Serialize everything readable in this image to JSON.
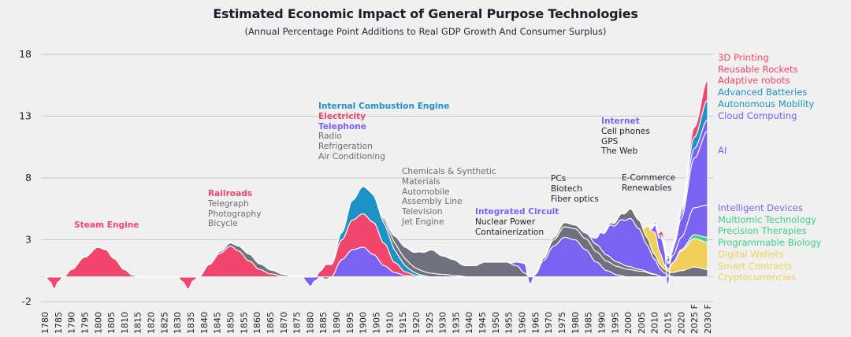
{
  "chart_data": {
    "type": "area",
    "title": "Estimated Economic Impact of General Purpose Technologies",
    "subtitle": "(Annual Percentage Point Additions to Real GDP Growth And Consumer Surplus)",
    "xlabel": "",
    "ylabel": "",
    "ylim": [
      -2,
      18
    ],
    "yticks": [
      18,
      13,
      8,
      3,
      -2
    ],
    "xlim": [
      1780,
      2030
    ],
    "xticks": [
      1780,
      1785,
      1790,
      1795,
      1800,
      1805,
      1810,
      1815,
      1820,
      1825,
      1830,
      1835,
      1840,
      1845,
      1850,
      1855,
      1860,
      1865,
      1870,
      1875,
      1880,
      1885,
      1890,
      1895,
      1900,
      1905,
      1910,
      1915,
      1920,
      1925,
      1930,
      1935,
      1940,
      1945,
      1950,
      1955,
      1960,
      1965,
      1970,
      1975,
      1980,
      1985,
      1990,
      1995,
      2000,
      2005,
      2010,
      2015,
      2020,
      2025,
      2030
    ],
    "xtick_labels": [
      "1780",
      "1785",
      "1790",
      "1795",
      "1800",
      "1805",
      "1810",
      "1815",
      "1820",
      "1825",
      "1830",
      "1835",
      "1840",
      "1845",
      "1850",
      "1855",
      "1860",
      "1865",
      "1870",
      "1875",
      "1880",
      "1885",
      "1890",
      "1895",
      "1900",
      "1905",
      "1910",
      "1915",
      "1920",
      "1925",
      "1930",
      "1935",
      "1940",
      "1945",
      "1950",
      "1955",
      "1960",
      "1965",
      "1970",
      "1975",
      "1980",
      "1985",
      "1990",
      "1995",
      "2000",
      "2005",
      "2010",
      "2015",
      "2020",
      "2025 F",
      "2030 F"
    ],
    "grid": true,
    "colors": {
      "pink": "#f2456c",
      "teal": "#1d92c6",
      "purple": "#7b63f2",
      "gray": "#6f717f",
      "yellow": "#f1cf5a",
      "green": "#3ccf8e",
      "background": "#f0f0f0",
      "grid": "#c8c8c8"
    },
    "series": [
      {
        "name": "Steam Engine",
        "color": "pink",
        "x": [
          1780,
          1782,
          1783.5,
          1785,
          1787,
          1790,
          1795,
          1800,
          1803,
          1806,
          1810,
          1813,
          1816,
          1820
        ],
        "y": [
          0,
          -0.4,
          -1.0,
          -0.4,
          0,
          0.6,
          1.6,
          2.4,
          2.2,
          1.5,
          0.6,
          0.15,
          0,
          0
        ]
      },
      {
        "name": "Railroads",
        "color": "pink",
        "x": [
          1830,
          1832,
          1834,
          1836,
          1838,
          1842,
          1846,
          1850,
          1853,
          1857,
          1861,
          1865,
          1870,
          1872
        ],
        "y": [
          0,
          -0.4,
          -1.0,
          -0.3,
          0,
          1.0,
          1.9,
          2.5,
          2.1,
          1.3,
          0.6,
          0.25,
          0.05,
          0
        ]
      },
      {
        "name": "Telegraph / Photography / Bicycle",
        "color": "gray",
        "x": [
          1840,
          1846,
          1850,
          1853,
          1857,
          1862,
          1866,
          1870,
          1874,
          1878,
          1880
        ],
        "y": [
          0,
          0.15,
          0.25,
          0.4,
          0.55,
          0.45,
          0.3,
          0.15,
          0.06,
          0,
          0
        ]
      },
      {
        "name": "Telephone",
        "color": "purple",
        "x": [
          1877,
          1879,
          1880,
          1882,
          1884,
          1886,
          1888,
          1892,
          1896,
          1900,
          1904,
          1908,
          1912,
          1916,
          1920
        ],
        "y": [
          0,
          -0.5,
          -0.8,
          -0.3,
          0,
          -0.2,
          0,
          1.4,
          2.2,
          2.4,
          1.8,
          0.9,
          0.35,
          0.1,
          0
        ]
      },
      {
        "name": "Electricity",
        "color": "pink",
        "x": [
          1882,
          1884,
          1886,
          1888,
          1892,
          1896,
          1900,
          1904,
          1908,
          1912,
          1916,
          1920,
          1924
        ],
        "y": [
          0,
          0.5,
          1.0,
          1.0,
          1.6,
          2.4,
          2.7,
          2.6,
          1.8,
          0.8,
          0.3,
          0.1,
          0
        ]
      },
      {
        "name": "Internal Combustion Engine",
        "color": "teal",
        "x": [
          1886,
          1888,
          1892,
          1896,
          1900,
          1903,
          1906,
          1910,
          1914,
          1918,
          1922,
          1926
        ],
        "y": [
          0,
          0.1,
          0.6,
          1.6,
          2.2,
          2.3,
          1.9,
          1.3,
          0.7,
          0.3,
          0.1,
          0
        ]
      },
      {
        "name": "Radio / Refrigeration / Air Conditioning",
        "color": "gray",
        "x": [
          1895,
          1900,
          1905,
          1908,
          1912,
          1916,
          1920,
          1925,
          1930,
          1935,
          1940
        ],
        "y": [
          0,
          0.05,
          0.1,
          0.3,
          0.6,
          0.55,
          0.4,
          0.3,
          0.2,
          0.1,
          0
        ]
      },
      {
        "name": "Chemicals & Synthetic Materials / Automobile / Assembly Line / Television / Jet Engine",
        "color": "gray",
        "x": [
          1905,
          1910,
          1914,
          1918,
          1922,
          1926,
          1930,
          1934,
          1938,
          1942,
          1946,
          1950,
          1954,
          1958,
          1961,
          1963
        ],
        "y": [
          0,
          0.3,
          0.8,
          1.1,
          1.5,
          1.9,
          1.5,
          1.3,
          0.9,
          0.9,
          1.2,
          1.2,
          1.2,
          0.9,
          0.3,
          0
        ]
      },
      {
        "name": "Integrated Circuit",
        "color": "purple",
        "x": [
          1955,
          1958,
          1961,
          1963,
          1965,
          1968,
          1972,
          1976,
          1980,
          1984,
          1988,
          1992,
          1996,
          2000
        ],
        "y": [
          0,
          0.3,
          0.8,
          -0.6,
          0.2,
          1.3,
          2.5,
          3.2,
          3.0,
          2.2,
          1.2,
          0.5,
          0.15,
          0
        ]
      },
      {
        "name": "Nuclear Power / Containerization",
        "color": "gray",
        "x": [
          1960,
          1965,
          1968,
          1972,
          1976,
          1980,
          1985,
          1990,
          1995,
          2000,
          2005,
          2010,
          2013
        ],
        "y": [
          0,
          0.05,
          0.2,
          0.5,
          0.85,
          0.9,
          0.9,
          0.8,
          0.7,
          0.6,
          0.45,
          0.2,
          0
        ]
      },
      {
        "name": "PCs / Biotech / Fiber optics",
        "color": "gray",
        "x": [
          1968,
          1972,
          1976,
          1980,
          1984,
          1988,
          1992,
          1996,
          2000,
          2004,
          2008,
          2012
        ],
        "y": [
          0,
          0.2,
          0.35,
          0.3,
          0.45,
          0.6,
          0.5,
          0.35,
          0.25,
          0.15,
          0.05,
          0
        ]
      },
      {
        "name": "Internet / Cell phones / GPS / The Web",
        "color": "purple",
        "x": [
          1985,
          1988,
          1990,
          1994,
          1998,
          2001,
          2004,
          2007,
          2010,
          2012,
          2014,
          2016,
          2018
        ],
        "y": [
          0,
          0.5,
          1.4,
          2.7,
          3.6,
          3.9,
          3.3,
          2.2,
          1.2,
          0.6,
          0.3,
          0.05,
          0
        ]
      },
      {
        "name": "E-Commerce / Renewables",
        "color": "gray",
        "x": [
          1990,
          1994,
          1998,
          2001,
          2004,
          2007,
          2010,
          2013,
          2016,
          2020,
          2025,
          2030
        ],
        "y": [
          0,
          0.2,
          0.5,
          0.8,
          0.7,
          0.6,
          0.4,
          0.3,
          0.3,
          0.5,
          0.8,
          0.6
        ]
      },
      {
        "name": "Cryptocurrencies / Smart Contracts / Digital Wallets",
        "color": "yellow",
        "x": [
          2005,
          2008,
          2010,
          2012,
          2014,
          2015,
          2017,
          2020,
          2025,
          2030
        ],
        "y": [
          0,
          1.2,
          1.8,
          1.0,
          0.3,
          0.2,
          0.8,
          1.6,
          2.3,
          2.2
        ]
      },
      {
        "name": "Programmable Biology / Precision Therapies / Multiomic Technology",
        "color": "green",
        "x": [
          2015,
          2018,
          2020,
          2025,
          2030
        ],
        "y": [
          0,
          0.02,
          0.1,
          0.3,
          0.4
        ]
      },
      {
        "name": "Intelligent Devices",
        "color": "purple",
        "x": [
          2008,
          2011,
          2013,
          2015,
          2017,
          2020,
          2025,
          2030
        ],
        "y": [
          0,
          0.8,
          1.5,
          0.4,
          0.6,
          1.0,
          2.2,
          2.6
        ]
      },
      {
        "name": "AI",
        "color": "purple",
        "x": [
          2012,
          2014,
          2015,
          2016,
          2018,
          2020,
          2025,
          2030
        ],
        "y": [
          0,
          0.2,
          -0.8,
          0.2,
          0.8,
          1.5,
          4.0,
          6.0
        ]
      },
      {
        "name": "Cloud Computing",
        "color": "purple",
        "x": [
          2012,
          2015,
          2018,
          2020,
          2025,
          2030
        ],
        "y": [
          0,
          0.1,
          0.2,
          0.4,
          0.8,
          0.9
        ]
      },
      {
        "name": "Autonomous Mobility / Advanced Batteries",
        "color": "teal",
        "x": [
          2008,
          2011,
          2013,
          2015,
          2018,
          2020,
          2025,
          2030
        ],
        "y": [
          0,
          0.1,
          0.2,
          0.3,
          0.1,
          0.3,
          0.9,
          1.6
        ]
      },
      {
        "name": "Adaptive robots / Reusable Rockets / 3D Printing",
        "color": "pink",
        "x": [
          2008,
          2011,
          2013,
          2015,
          2018,
          2020,
          2025,
          2030
        ],
        "y": [
          0,
          0.2,
          0.4,
          0.2,
          0.1,
          0.2,
          0.8,
          1.6
        ]
      }
    ]
  },
  "annotations": [
    {
      "id": "steam",
      "lines": [
        {
          "text": "Steam Engine",
          "color": "pink",
          "bold": true
        }
      ]
    },
    {
      "id": "rail",
      "lines": [
        {
          "text": "Railroads",
          "color": "pink",
          "bold": true
        },
        {
          "text": "Telegraph",
          "color": "grayText"
        },
        {
          "text": "Photography",
          "color": "grayText"
        },
        {
          "text": "Bicycle",
          "color": "grayText"
        }
      ]
    },
    {
      "id": "ice",
      "lines": [
        {
          "text": "Internal Combustion Engine",
          "color": "teal",
          "bold": true
        },
        {
          "text": "Electricity",
          "color": "pink",
          "bold": true
        },
        {
          "text": "Telephone",
          "color": "purple",
          "bold": true
        },
        {
          "text": "Radio",
          "color": "grayText"
        },
        {
          "text": "Refrigeration",
          "color": "grayText"
        },
        {
          "text": "Air Conditioning",
          "color": "grayText"
        }
      ]
    },
    {
      "id": "chem",
      "lines": [
        {
          "text": "Chemicals & Synthetic",
          "color": "grayText"
        },
        {
          "text": "Materials",
          "color": "grayText"
        },
        {
          "text": "Automobile",
          "color": "grayText"
        },
        {
          "text": "Assembly Line",
          "color": "grayText"
        },
        {
          "text": "Television",
          "color": "grayText"
        },
        {
          "text": "Jet Engine",
          "color": "grayText"
        }
      ]
    },
    {
      "id": "ic",
      "lines": [
        {
          "text": "Integrated Circuit",
          "color": "purple",
          "bold": true
        },
        {
          "text": "Nuclear Power",
          "color": "dark"
        },
        {
          "text": "Containerization",
          "color": "dark"
        }
      ]
    },
    {
      "id": "pcs",
      "lines": [
        {
          "text": "PCs",
          "color": "dark"
        },
        {
          "text": "Biotech",
          "color": "dark"
        },
        {
          "text": "Fiber optics",
          "color": "dark"
        }
      ]
    },
    {
      "id": "internet",
      "lines": [
        {
          "text": "Internet",
          "color": "purple",
          "bold": true
        },
        {
          "text": "Cell phones",
          "color": "dark"
        },
        {
          "text": "GPS",
          "color": "dark"
        },
        {
          "text": "The Web",
          "color": "dark"
        }
      ]
    },
    {
      "id": "ecom",
      "lines": [
        {
          "text": "E-Commerce",
          "color": "dark"
        },
        {
          "text": "Renewables",
          "color": "dark"
        }
      ]
    }
  ],
  "legend": {
    "placement": "right",
    "top_group": [
      {
        "text": "3D Printing",
        "color": "pink"
      },
      {
        "text": "Reusable Rockets",
        "color": "pink"
      },
      {
        "text": "Adaptive robots",
        "color": "pink"
      },
      {
        "text": "Advanced Batteries",
        "color": "teal"
      },
      {
        "text": "Autonomous Mobility",
        "color": "teal"
      },
      {
        "text": "Cloud Computing",
        "color": "purple"
      }
    ],
    "ai": {
      "text": "AI",
      "color": "purple"
    },
    "bottom_group": [
      {
        "text": "Intelligent Devices",
        "color": "purple"
      },
      {
        "text": "Multiomic Technology",
        "color": "green"
      },
      {
        "text": "Precision Therapies",
        "color": "green"
      },
      {
        "text": "Programmable Biology",
        "color": "green"
      },
      {
        "text": "Digital Wallets",
        "color": "yellow"
      },
      {
        "text": "Smart Contracts",
        "color": "yellow"
      },
      {
        "text": "Cryptocurrencies",
        "color": "yellow"
      }
    ]
  },
  "text_colors": {
    "grayText": "#6b6b73",
    "dark": "#1d1d28"
  }
}
